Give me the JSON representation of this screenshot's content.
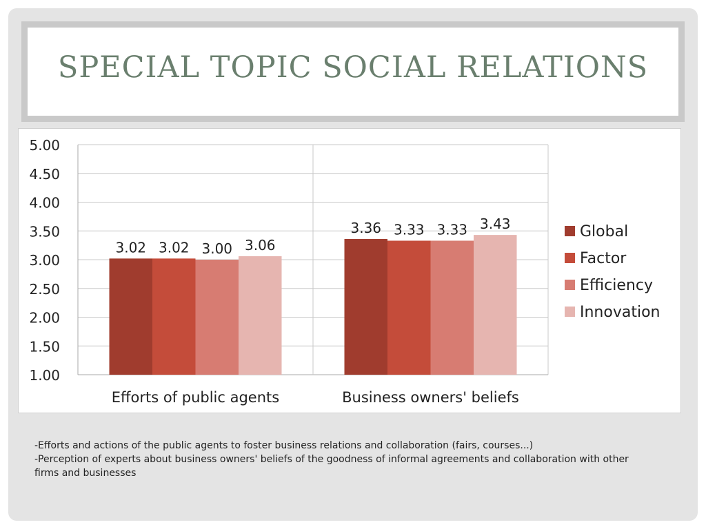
{
  "slide": {
    "title": "Special Topic Social Relations",
    "notes": [
      "-Efforts and actions of the public agents to foster business relations and collaboration (fairs, courses...)",
      "-Perception of experts about business owners' beliefs of the goodness of informal agreements and collaboration with other firms and businesses"
    ]
  },
  "chart_data": {
    "type": "bar",
    "categories": [
      "Efforts of public agents",
      "Business owners' beliefs"
    ],
    "series": [
      {
        "name": "Global",
        "values": [
          3.02,
          3.36
        ],
        "color": "#a03c2e"
      },
      {
        "name": "Factor",
        "values": [
          3.02,
          3.33
        ],
        "color": "#c44c3a"
      },
      {
        "name": "Efficiency",
        "values": [
          3.0,
          3.33
        ],
        "color": "#d77c72"
      },
      {
        "name": "Innovation",
        "values": [
          3.06,
          3.43
        ],
        "color": "#e6b5b0"
      }
    ],
    "value_labels": [
      [
        "3.02",
        "3.36"
      ],
      [
        "3.02",
        "3.33"
      ],
      [
        "3.00",
        "3.33"
      ],
      [
        "3.06",
        "3.43"
      ]
    ],
    "ylim": [
      1.0,
      5.0
    ],
    "yticks": [
      "1.00",
      "1.50",
      "2.00",
      "2.50",
      "3.00",
      "3.50",
      "4.00",
      "4.50",
      "5.00"
    ],
    "ytick_values": [
      1.0,
      1.5,
      2.0,
      2.5,
      3.0,
      3.5,
      4.0,
      4.5,
      5.0
    ],
    "grid": true,
    "legend_position": "right",
    "title": "",
    "xlabel": "",
    "ylabel": ""
  }
}
